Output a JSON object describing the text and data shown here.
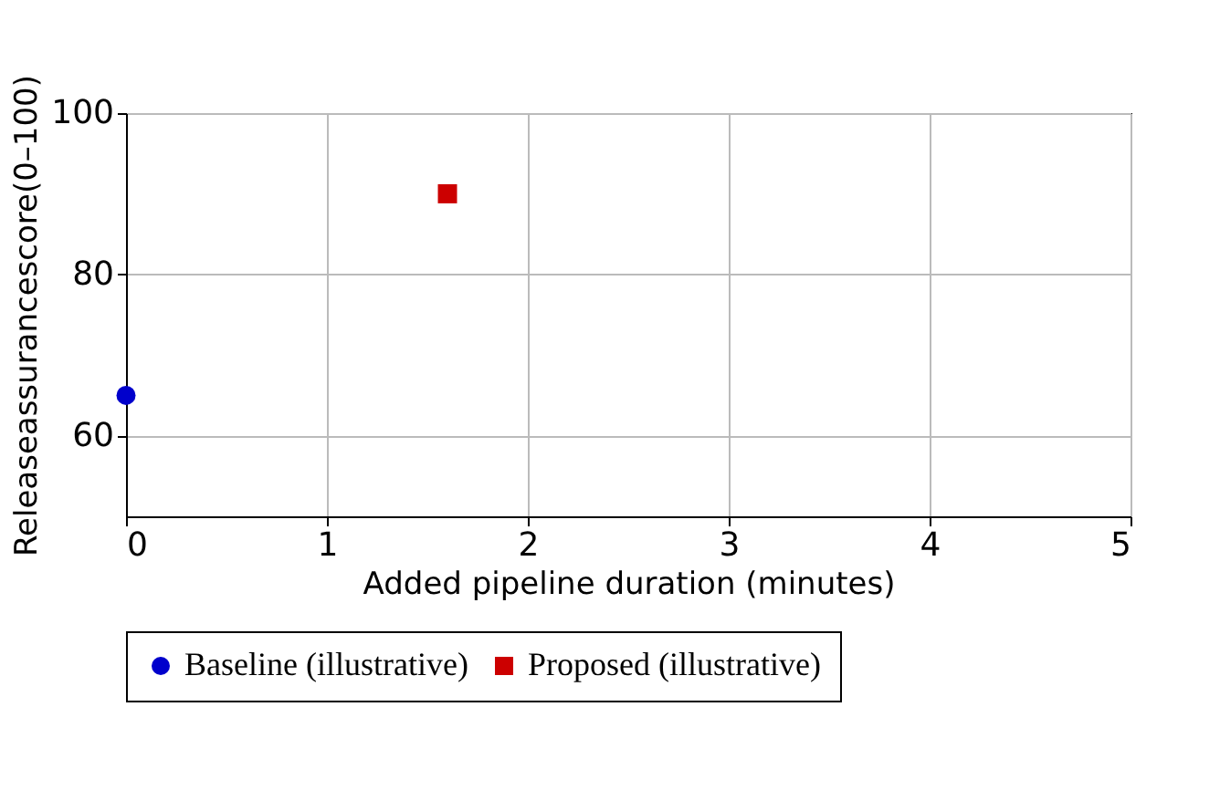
{
  "chart_data": {
    "type": "scatter",
    "xlabel": "Added pipeline duration (minutes)",
    "ylabel": "Releaseassurancescore(0–100)",
    "series": [
      {
        "name": "Baseline (illustrative)",
        "color": "#0000cc",
        "marker": "circle",
        "x": [
          0
        ],
        "values": [
          65
        ]
      },
      {
        "name": "Proposed (illustrative)",
        "color": "#cc0000",
        "marker": "square",
        "x": [
          1.6
        ],
        "values": [
          90
        ]
      }
    ],
    "xlim": [
      0,
      5
    ],
    "xticks": [
      0,
      1,
      2,
      3,
      4,
      5
    ],
    "ylim": [
      50,
      100
    ],
    "yticks": [
      60,
      80,
      100
    ],
    "grid": true,
    "legend": "bottom"
  }
}
